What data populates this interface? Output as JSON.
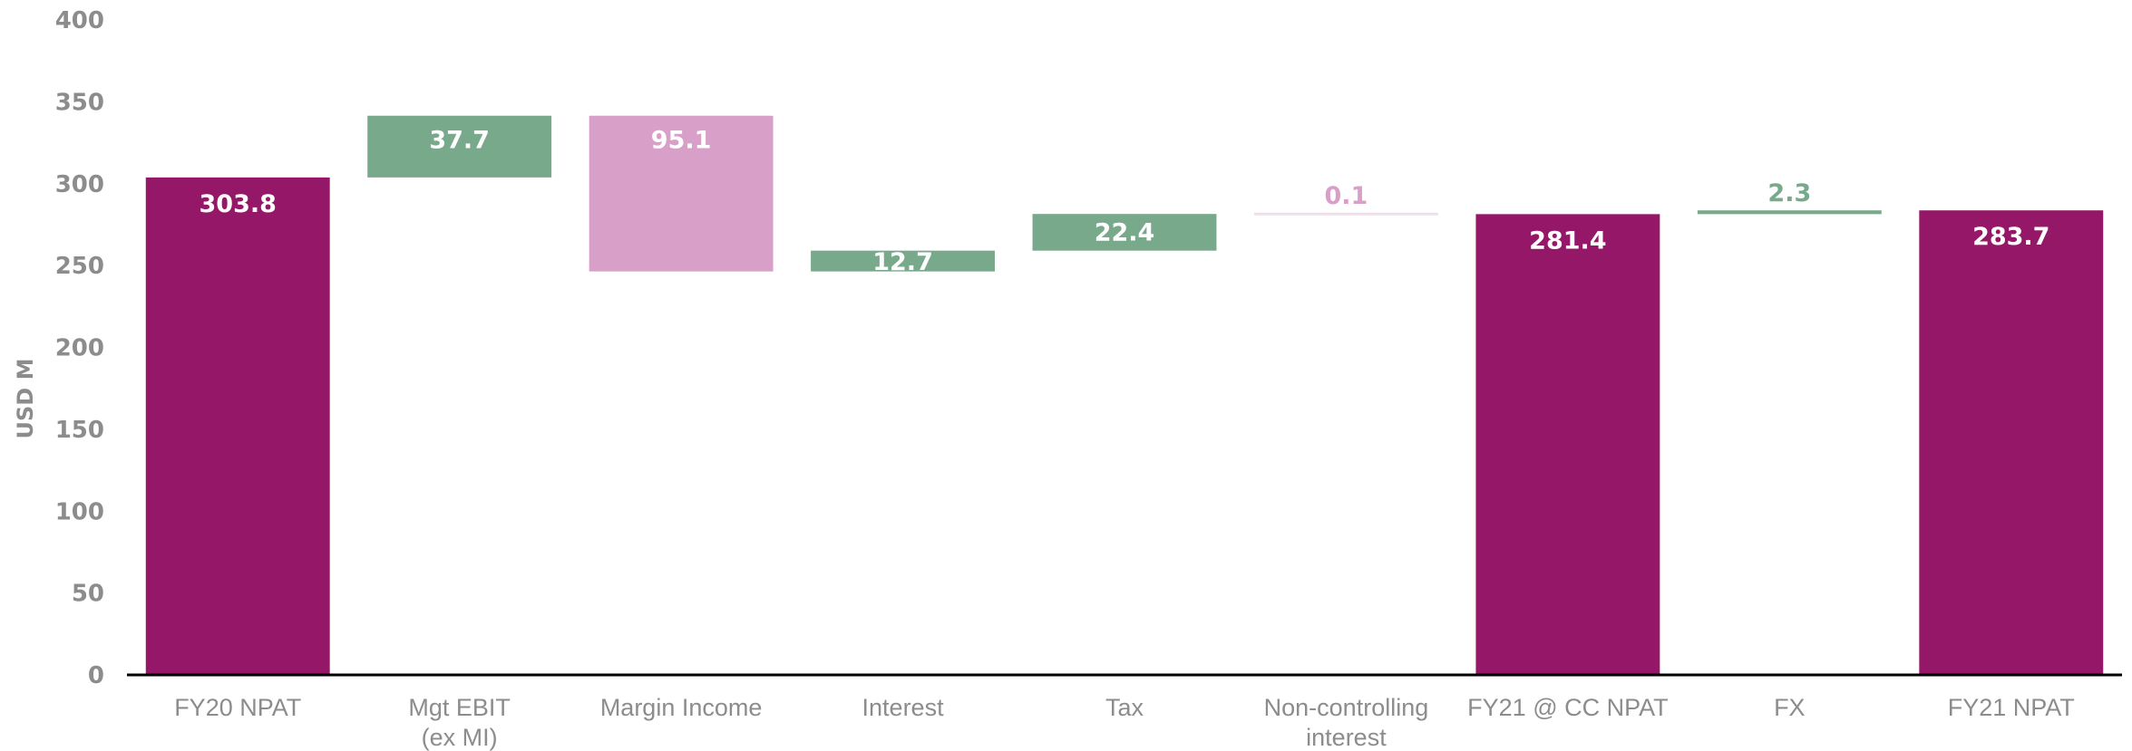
{
  "chart_data": {
    "type": "waterfall",
    "ylabel": "USD M",
    "ylim": [
      0,
      400
    ],
    "yticks": [
      0,
      50,
      100,
      150,
      200,
      250,
      300,
      350,
      400
    ],
    "grid": false,
    "legend": "none",
    "categories": [
      [
        "FY20 NPAT"
      ],
      [
        "Mgt EBIT",
        "(ex MI)"
      ],
      [
        "Margin Income"
      ],
      [
        "Interest"
      ],
      [
        "Tax"
      ],
      [
        "Non-controlling",
        "interest"
      ],
      [
        "FY21 @ CC NPAT"
      ],
      [
        "FX"
      ],
      [
        "FY21 NPAT"
      ]
    ],
    "bars": [
      {
        "kind": "total",
        "from": 0,
        "to": 303.8,
        "label": "303.8"
      },
      {
        "kind": "increase",
        "from": 303.8,
        "to": 341.5,
        "label": "37.7"
      },
      {
        "kind": "decrease",
        "from": 341.5,
        "to": 246.4,
        "label": "95.1"
      },
      {
        "kind": "increase",
        "from": 246.4,
        "to": 259.1,
        "label": "12.7"
      },
      {
        "kind": "increase",
        "from": 259.1,
        "to": 281.5,
        "label": "22.4"
      },
      {
        "kind": "decrease",
        "from": 281.5,
        "to": 281.4,
        "label": "0.1"
      },
      {
        "kind": "total",
        "from": 0,
        "to": 281.4,
        "label": "281.4"
      },
      {
        "kind": "increase",
        "from": 281.4,
        "to": 283.7,
        "label": "2.3"
      },
      {
        "kind": "total",
        "from": 0,
        "to": 283.7,
        "label": "283.7"
      }
    ],
    "colors": {
      "total": "#941768",
      "increase": "#78a98b",
      "decrease": "#d8a0c8",
      "axis_text": "#8c8c8c",
      "axis_line": "#000000",
      "label_on_bar": "#ffffff"
    }
  }
}
